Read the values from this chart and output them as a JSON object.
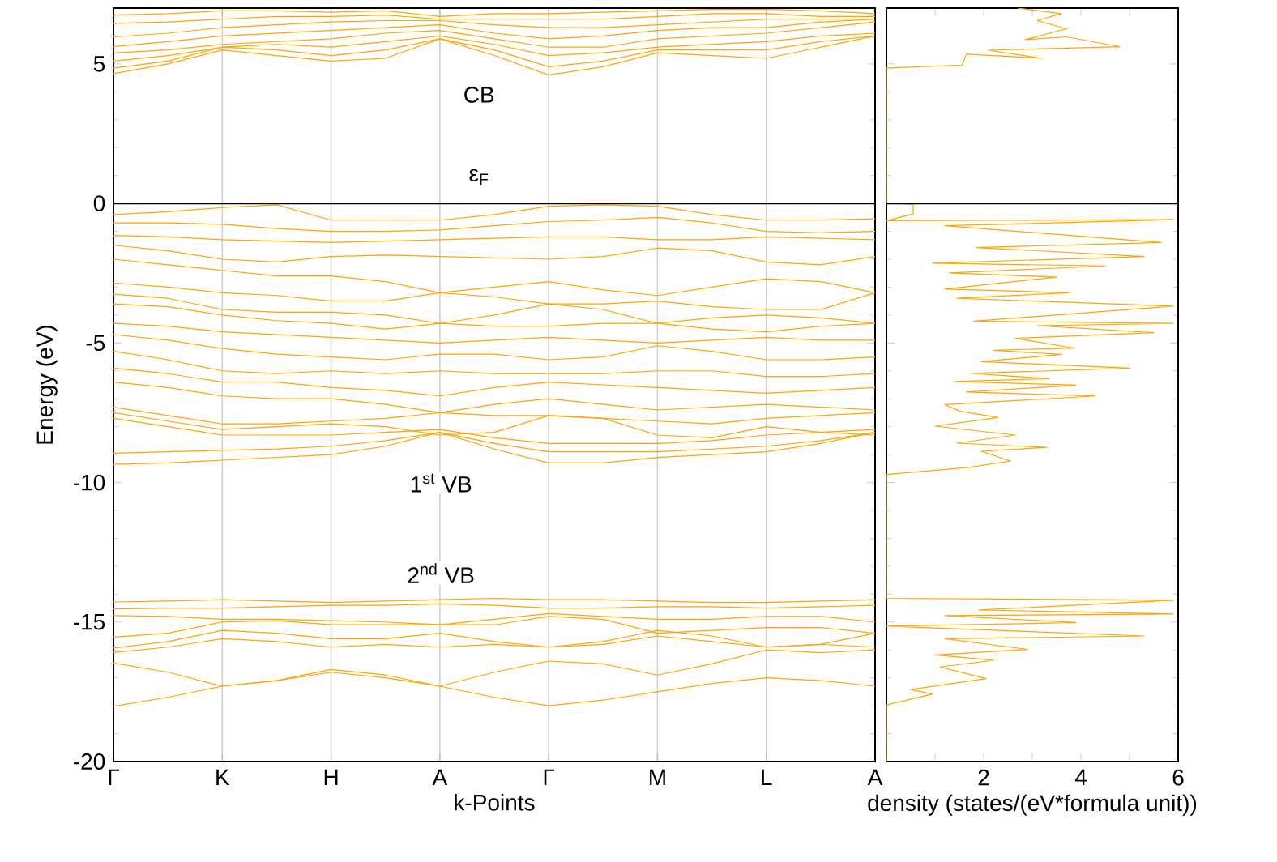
{
  "chart_data": [
    {
      "type": "line",
      "xlabel": "k-Points",
      "ylabel": "Energy (eV)",
      "grid": "x",
      "ylim": [
        -20,
        7
      ],
      "yticks": [
        -20,
        -15,
        -10,
        -5,
        0,
        5
      ],
      "ref_lines": [
        {
          "axis": "y",
          "value": 0,
          "color": "#000000"
        }
      ],
      "annotations": [
        "CB",
        "ε$_{F}$",
        "1$^{st}$ VB",
        "2$^{nd}$ VB"
      ],
      "categories": [
        "Γ",
        null,
        "K",
        null,
        "H",
        null,
        "A",
        null,
        "Γ",
        null,
        "M",
        null,
        "L",
        null,
        "A"
      ],
      "series": [
        {
          "color": "#ffa500",
          "values": [
            6.75,
            6.8,
            6.9,
            6.9,
            6.85,
            6.9,
            6.7,
            6.8,
            6.8,
            6.85,
            6.9,
            6.95,
            6.95,
            6.9,
            6.8
          ]
        },
        {
          "color": "#ffa500",
          "values": [
            6.45,
            6.5,
            6.6,
            6.7,
            6.7,
            6.75,
            6.6,
            6.6,
            6.6,
            6.6,
            6.7,
            6.8,
            6.8,
            6.7,
            6.7
          ]
        },
        {
          "color": "#ffa500",
          "values": [
            5.97,
            6.1,
            6.3,
            6.4,
            6.5,
            6.55,
            6.55,
            6.4,
            6.3,
            6.3,
            6.4,
            6.5,
            6.6,
            6.6,
            6.6
          ]
        },
        {
          "color": "#ffa500",
          "values": [
            5.62,
            5.8,
            6.0,
            6.1,
            6.2,
            6.3,
            6.4,
            6.1,
            5.9,
            6.0,
            6.2,
            6.3,
            6.3,
            6.5,
            6.6
          ]
        },
        {
          "color": "#ffa500",
          "values": [
            5.39,
            5.5,
            5.7,
            5.8,
            5.9,
            6.1,
            6.2,
            5.9,
            5.6,
            5.6,
            5.9,
            6.0,
            6.1,
            6.3,
            6.5
          ]
        },
        {
          "color": "#ffa500",
          "values": [
            5.1,
            5.3,
            5.6,
            5.7,
            5.6,
            5.8,
            6.0,
            5.7,
            5.3,
            5.4,
            5.6,
            5.7,
            5.8,
            6.0,
            6.1
          ]
        },
        {
          "color": "#ffa500",
          "values": [
            4.85,
            5.1,
            5.6,
            5.5,
            5.3,
            5.5,
            5.9,
            5.5,
            4.9,
            5.1,
            5.5,
            5.5,
            5.5,
            5.8,
            6.0
          ]
        },
        {
          "color": "#ffa500",
          "values": [
            4.65,
            5.0,
            5.5,
            5.3,
            5.1,
            5.2,
            5.9,
            5.3,
            4.6,
            4.9,
            5.4,
            5.3,
            5.2,
            5.6,
            6.0
          ]
        },
        {
          "color": "#ffa500",
          "values": [
            -0.4,
            -0.3,
            -0.15,
            -0.05,
            -0.6,
            -0.6,
            -0.6,
            -0.4,
            -0.1,
            -0.05,
            -0.1,
            -0.4,
            -0.6,
            -0.6,
            -0.55
          ]
        },
        {
          "color": "#ffa500",
          "values": [
            -0.7,
            -0.7,
            -0.75,
            -0.9,
            -1.0,
            -1.0,
            -0.95,
            -0.8,
            -0.65,
            -0.6,
            -0.5,
            -0.7,
            -1.0,
            -1.05,
            -1.0
          ]
        },
        {
          "color": "#ffa500",
          "values": [
            -1.15,
            -1.2,
            -1.3,
            -1.35,
            -1.4,
            -1.35,
            -1.3,
            -1.25,
            -1.2,
            -1.2,
            -1.3,
            -1.3,
            -1.2,
            -1.25,
            -1.3
          ]
        },
        {
          "color": "#ffa500",
          "values": [
            -1.5,
            -1.7,
            -2.0,
            -2.1,
            -1.9,
            -1.85,
            -1.9,
            -1.95,
            -2.0,
            -1.9,
            -1.6,
            -1.7,
            -2.1,
            -2.2,
            -1.9
          ]
        },
        {
          "color": "#ffa500",
          "values": [
            -2.0,
            -2.2,
            -2.4,
            -2.6,
            -2.6,
            -2.8,
            -3.2,
            -3.0,
            -2.8,
            -3.1,
            -3.3,
            -3.0,
            -2.7,
            -2.8,
            -3.2
          ]
        },
        {
          "color": "#ffa500",
          "values": [
            -2.85,
            -3.0,
            -3.2,
            -3.3,
            -3.5,
            -3.5,
            -3.2,
            -3.35,
            -3.6,
            -3.6,
            -3.5,
            -3.7,
            -3.8,
            -3.8,
            -3.2
          ]
        },
        {
          "color": "#ffa500",
          "values": [
            -3.25,
            -3.4,
            -3.8,
            -3.9,
            -3.9,
            -4.0,
            -4.3,
            -4.0,
            -3.6,
            -3.8,
            -4.3,
            -4.1,
            -4.0,
            -4.1,
            -4.3
          ]
        },
        {
          "color": "#ffa500",
          "values": [
            -3.6,
            -3.7,
            -4.0,
            -4.2,
            -4.3,
            -4.5,
            -4.3,
            -4.4,
            -4.4,
            -4.3,
            -4.3,
            -4.5,
            -4.6,
            -4.4,
            -4.3
          ]
        },
        {
          "color": "#ffa500",
          "values": [
            -4.3,
            -4.4,
            -4.6,
            -4.7,
            -4.8,
            -4.9,
            -5.0,
            -4.9,
            -4.8,
            -4.9,
            -5.0,
            -4.9,
            -4.8,
            -4.9,
            -4.9
          ]
        },
        {
          "color": "#ffa500",
          "values": [
            -4.7,
            -4.9,
            -5.2,
            -5.4,
            -5.5,
            -5.6,
            -5.4,
            -5.4,
            -5.6,
            -5.5,
            -5.1,
            -5.3,
            -5.6,
            -5.6,
            -5.5
          ]
        },
        {
          "color": "#ffa500",
          "values": [
            -5.3,
            -5.6,
            -6.0,
            -6.1,
            -6.0,
            -6.1,
            -6.0,
            -6.1,
            -6.1,
            -6.1,
            -6.0,
            -6.0,
            -6.2,
            -6.2,
            -6.1
          ]
        },
        {
          "color": "#ffa500",
          "values": [
            -5.9,
            -6.1,
            -6.4,
            -6.4,
            -6.6,
            -6.7,
            -6.9,
            -6.6,
            -6.4,
            -6.5,
            -6.6,
            -6.7,
            -6.8,
            -6.7,
            -6.6
          ]
        },
        {
          "color": "#ffa500",
          "values": [
            -6.4,
            -6.6,
            -6.9,
            -7.0,
            -7.0,
            -7.2,
            -7.5,
            -7.2,
            -7.0,
            -7.2,
            -7.4,
            -7.3,
            -7.2,
            -7.3,
            -7.4
          ]
        },
        {
          "color": "#ffa500",
          "values": [
            -7.3,
            -7.6,
            -7.9,
            -7.9,
            -7.8,
            -7.7,
            -7.5,
            -7.6,
            -7.6,
            -7.7,
            -7.8,
            -7.9,
            -7.7,
            -7.6,
            -7.5
          ]
        },
        {
          "color": "#ffa500",
          "values": [
            -7.5,
            -7.8,
            -8.1,
            -8.0,
            -7.9,
            -8.0,
            -8.3,
            -8.2,
            -7.6,
            -7.7,
            -8.3,
            -8.4,
            -8.0,
            -8.2,
            -8.3
          ]
        },
        {
          "color": "#ffa500",
          "values": [
            -7.7,
            -8.0,
            -8.3,
            -8.3,
            -8.3,
            -8.2,
            -8.1,
            -8.4,
            -8.6,
            -8.6,
            -8.6,
            -8.5,
            -8.3,
            -8.2,
            -8.1
          ]
        },
        {
          "color": "#ffa500",
          "values": [
            -8.95,
            -8.9,
            -8.85,
            -8.8,
            -8.7,
            -8.5,
            -8.2,
            -8.6,
            -8.9,
            -8.9,
            -8.9,
            -8.8,
            -8.7,
            -8.5,
            -8.2
          ]
        },
        {
          "color": "#ffa500",
          "values": [
            -9.35,
            -9.3,
            -9.2,
            -9.1,
            -9.0,
            -8.7,
            -8.2,
            -8.8,
            -9.3,
            -9.3,
            -9.1,
            -9.0,
            -8.9,
            -8.6,
            -8.2
          ]
        },
        {
          "color": "#ffa500",
          "values": [
            -14.28,
            -14.25,
            -14.2,
            -14.25,
            -14.3,
            -14.25,
            -14.2,
            -14.15,
            -14.2,
            -14.2,
            -14.25,
            -14.3,
            -14.3,
            -14.25,
            -14.2
          ]
        },
        {
          "color": "#ffa500",
          "values": [
            -14.53,
            -14.5,
            -14.5,
            -14.45,
            -14.4,
            -14.4,
            -14.35,
            -14.4,
            -14.5,
            -14.5,
            -14.45,
            -14.45,
            -14.5,
            -14.45,
            -14.4
          ]
        },
        {
          "color": "#ffa500",
          "values": [
            -14.77,
            -14.8,
            -14.9,
            -14.9,
            -14.95,
            -15.0,
            -15.1,
            -14.9,
            -14.7,
            -14.8,
            -14.9,
            -14.9,
            -14.8,
            -14.8,
            -15.0
          ]
        },
        {
          "color": "#ffa500",
          "values": [
            -15.54,
            -15.4,
            -15.0,
            -14.95,
            -15.1,
            -15.1,
            -15.1,
            -15.1,
            -14.8,
            -14.9,
            -15.4,
            -15.3,
            -15.2,
            -15.2,
            -15.4
          ]
        },
        {
          "color": "#ffa500",
          "values": [
            -15.93,
            -15.7,
            -15.3,
            -15.4,
            -15.6,
            -15.6,
            -15.4,
            -15.7,
            -15.9,
            -15.7,
            -15.3,
            -15.5,
            -15.9,
            -15.8,
            -15.4
          ]
        },
        {
          "color": "#ffa500",
          "values": [
            -16.09,
            -15.9,
            -15.6,
            -15.7,
            -15.9,
            -15.8,
            -15.9,
            -15.8,
            -15.9,
            -15.8,
            -15.5,
            -15.7,
            -15.9,
            -15.8,
            -15.9
          ]
        },
        {
          "color": "#ffa500",
          "values": [
            -16.47,
            -16.8,
            -17.3,
            -17.1,
            -16.7,
            -16.9,
            -17.3,
            -16.8,
            -16.4,
            -16.5,
            -16.9,
            -16.5,
            -16.0,
            -16.1,
            -16.0
          ]
        },
        {
          "color": "#ffa500",
          "values": [
            -18.02,
            -17.7,
            -17.3,
            -17.1,
            -16.8,
            -17.0,
            -17.3,
            -17.7,
            -18.0,
            -17.8,
            -17.5,
            -17.2,
            -17.0,
            -17.1,
            -17.3
          ]
        }
      ]
    },
    {
      "type": "line",
      "xlabel": "density (states/(eV*formula unit))",
      "tick_labels": "x",
      "xlim": [
        0,
        6
      ],
      "ylim": [
        -20,
        7
      ],
      "xticks": [
        {
          "value": 0,
          "label": null
        },
        {
          "value": 1,
          "label": null
        },
        2,
        {
          "value": 3,
          "label": null
        },
        4,
        {
          "value": 5,
          "label": null
        },
        6
      ],
      "yticks": [
        -20,
        -15,
        -10,
        -5,
        0,
        5
      ],
      "ref_lines": [
        {
          "axis": "y",
          "value": 0,
          "color": "#000000"
        }
      ],
      "series": [
        {
          "color": "#ffa500",
          "x": [
            2.7,
            3.6,
            3.1,
            3.7,
            2.85,
            3.7,
            4.8,
            2.1,
            3.2,
            1.65,
            1.55,
            0,
            0,
            0.55,
            0.55,
            0,
            5.9,
            1.2,
            5.65,
            1.85,
            5.3,
            0.95,
            4.5,
            1.3,
            3.5,
            1.2,
            3.75,
            1.45,
            5.9,
            1.8,
            5.9,
            3.1,
            5.5,
            2.65,
            3.85,
            2.2,
            3.6,
            1.95,
            5.0,
            1.75,
            3.35,
            1.4,
            3.9,
            1.65,
            4.3,
            1.2,
            1.5,
            2.3,
            1.0,
            2.65,
            1.45,
            3.3,
            1.95,
            2.55,
            1.7,
            0,
            0,
            5.9,
            1.9,
            5.9,
            1.2,
            3.9,
            0,
            5.3,
            1.2,
            2.9,
            1.0,
            2.2,
            1.1,
            2.05,
            0.5,
            0.95,
            0,
            0
          ],
          "values": [
            7.0,
            6.8,
            6.55,
            6.26,
            5.87,
            5.97,
            5.62,
            5.49,
            5.2,
            5.35,
            4.96,
            4.85,
            0.0,
            -0.03,
            -0.38,
            -0.62,
            -0.58,
            -0.8,
            -1.4,
            -1.58,
            -1.9,
            -2.14,
            -2.24,
            -2.49,
            -2.64,
            -3.07,
            -3.2,
            -3.4,
            -3.68,
            -4.22,
            -4.3,
            -4.38,
            -4.63,
            -4.83,
            -5.18,
            -5.26,
            -5.41,
            -5.67,
            -5.9,
            -6.09,
            -6.28,
            -6.38,
            -6.51,
            -6.76,
            -6.9,
            -7.21,
            -7.44,
            -7.67,
            -7.98,
            -8.3,
            -8.59,
            -8.74,
            -8.88,
            -9.23,
            -9.46,
            -9.71,
            -14.15,
            -14.22,
            -14.57,
            -14.71,
            -14.77,
            -15.02,
            -15.15,
            -15.5,
            -15.6,
            -15.98,
            -16.18,
            -16.37,
            -16.61,
            -17.03,
            -17.42,
            -17.58,
            -17.97,
            -20
          ]
        }
      ]
    }
  ]
}
